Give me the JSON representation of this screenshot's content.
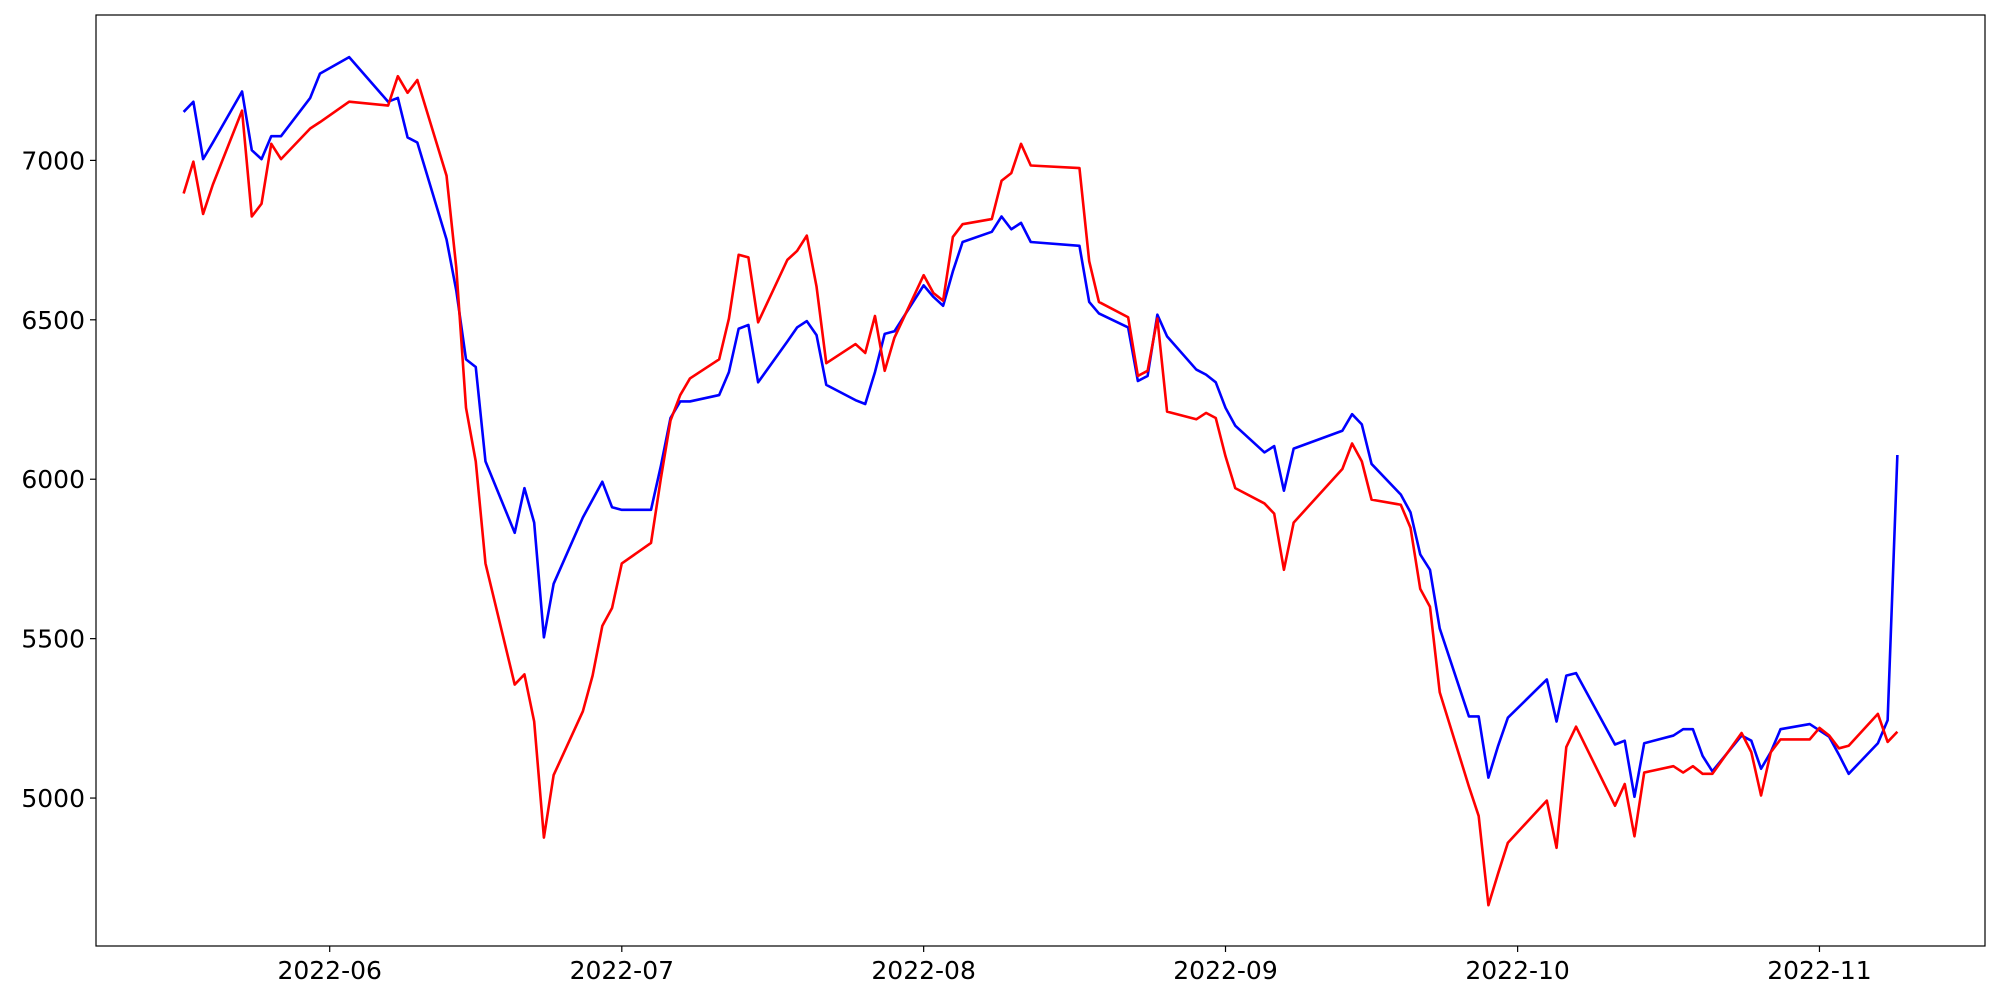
{
  "chart_data": {
    "type": "line",
    "x": [
      "2022-05-17",
      "2022-05-18",
      "2022-05-19",
      "2022-05-20",
      "2022-05-23",
      "2022-05-24",
      "2022-05-25",
      "2022-05-26",
      "2022-05-27",
      "2022-05-30",
      "2022-05-31",
      "2022-06-03",
      "2022-06-07",
      "2022-06-08",
      "2022-06-09",
      "2022-06-10",
      "2022-06-13",
      "2022-06-14",
      "2022-06-15",
      "2022-06-16",
      "2022-06-17",
      "2022-06-20",
      "2022-06-21",
      "2022-06-22",
      "2022-06-23",
      "2022-06-24",
      "2022-06-27",
      "2022-06-28",
      "2022-06-29",
      "2022-06-30",
      "2022-07-01",
      "2022-07-04",
      "2022-07-05",
      "2022-07-06",
      "2022-07-07",
      "2022-07-08",
      "2022-07-11",
      "2022-07-12",
      "2022-07-13",
      "2022-07-14",
      "2022-07-15",
      "2022-07-18",
      "2022-07-19",
      "2022-07-20",
      "2022-07-21",
      "2022-07-22",
      "2022-07-25",
      "2022-07-26",
      "2022-07-27",
      "2022-07-28",
      "2022-07-29",
      "2022-08-01",
      "2022-08-02",
      "2022-08-03",
      "2022-08-04",
      "2022-08-05",
      "2022-08-08",
      "2022-08-09",
      "2022-08-10",
      "2022-08-11",
      "2022-08-12",
      "2022-08-17",
      "2022-08-18",
      "2022-08-19",
      "2022-08-22",
      "2022-08-23",
      "2022-08-24",
      "2022-08-25",
      "2022-08-26",
      "2022-08-29",
      "2022-08-30",
      "2022-08-31",
      "2022-09-01",
      "2022-09-02",
      "2022-09-05",
      "2022-09-06",
      "2022-09-07",
      "2022-09-08",
      "2022-09-13",
      "2022-09-14",
      "2022-09-15",
      "2022-09-16",
      "2022-09-19",
      "2022-09-20",
      "2022-09-21",
      "2022-09-22",
      "2022-09-23",
      "2022-09-26",
      "2022-09-27",
      "2022-09-28",
      "2022-09-29",
      "2022-09-30",
      "2022-10-04",
      "2022-10-05",
      "2022-10-06",
      "2022-10-07",
      "2022-10-11",
      "2022-10-12",
      "2022-10-13",
      "2022-10-14",
      "2022-10-17",
      "2022-10-18",
      "2022-10-19",
      "2022-10-20",
      "2022-10-21",
      "2022-10-24",
      "2022-10-25",
      "2022-10-26",
      "2022-10-27",
      "2022-10-28",
      "2022-10-31",
      "2022-11-01",
      "2022-11-02",
      "2022-11-03",
      "2022-11-04",
      "2022-11-07",
      "2022-11-08",
      "2022-11-09"
    ],
    "series": [
      {
        "color": "#0000ff",
        "values": [
          7152,
          7184,
          7004,
          7056,
          7216,
          7032,
          7004,
          7076,
          7076,
          7196,
          7272,
          7324,
          7184,
          7196,
          7072,
          7056,
          6752,
          6592,
          6376,
          6352,
          6056,
          5832,
          5972,
          5864,
          5504,
          5672,
          5880,
          5936,
          5992,
          5912,
          5904,
          5904,
          6040,
          6192,
          6244,
          6244,
          6264,
          6336,
          6472,
          6484,
          6304,
          6432,
          6476,
          6496,
          6452,
          6296,
          6248,
          6236,
          6336,
          6456,
          6464,
          6608,
          6572,
          6544,
          6652,
          6744,
          6776,
          6824,
          6784,
          6804,
          6744,
          6732,
          6556,
          6520,
          6476,
          6308,
          6324,
          6516,
          6448,
          6344,
          6328,
          6304,
          6224,
          6168,
          6084,
          6104,
          5964,
          6096,
          6152,
          6204,
          6172,
          6048,
          5952,
          5896,
          5764,
          5716,
          5532,
          5256,
          5256,
          5064,
          5164,
          5252,
          5372,
          5240,
          5384,
          5392,
          5168,
          5180,
          5004,
          5172,
          5196,
          5216,
          5216,
          5132,
          5084,
          5196,
          5180,
          5092,
          5144,
          5216,
          5232,
          5212,
          5192,
          5136,
          5076,
          5172,
          5244,
          6076
        ]
      },
      {
        "color": "#ff0000",
        "values": [
          6896,
          6996,
          6832,
          6924,
          7156,
          6824,
          6864,
          7052,
          7004,
          7100,
          7120,
          7184,
          7172,
          7264,
          7212,
          7252,
          6952,
          6664,
          6224,
          6056,
          5736,
          5356,
          5388,
          5240,
          4876,
          5072,
          5272,
          5384,
          5540,
          5596,
          5736,
          5800,
          6000,
          6184,
          6264,
          6316,
          6376,
          6504,
          6704,
          6696,
          6492,
          6688,
          6716,
          6764,
          6604,
          6364,
          6424,
          6396,
          6512,
          6340,
          6444,
          6640,
          6584,
          6560,
          6760,
          6800,
          6816,
          6936,
          6960,
          7052,
          6984,
          6976,
          6684,
          6556,
          6508,
          6324,
          6340,
          6504,
          6212,
          6188,
          6208,
          6192,
          6072,
          5972,
          5924,
          5892,
          5716,
          5864,
          6032,
          6112,
          6056,
          5936,
          5920,
          5848,
          5656,
          5600,
          5332,
          5036,
          4944,
          4664,
          4764,
          4860,
          4992,
          4844,
          5160,
          5224,
          4976,
          5044,
          4880,
          5080,
          5100,
          5080,
          5100,
          5076,
          5076,
          5204,
          5144,
          5008,
          5144,
          5184,
          5184,
          5220,
          5196,
          5156,
          5164,
          5264,
          5176,
          5208
        ]
      }
    ],
    "xlim": [
      "2022-05-08",
      "2022-11-18"
    ],
    "xticks": [
      "2022-06",
      "2022-07",
      "2022-08",
      "2022-09",
      "2022-10",
      "2022-11"
    ],
    "ylim": [
      4536,
      7456
    ],
    "yticks": [
      5000,
      5500,
      6000,
      6500,
      7000
    ],
    "grid": false
  }
}
